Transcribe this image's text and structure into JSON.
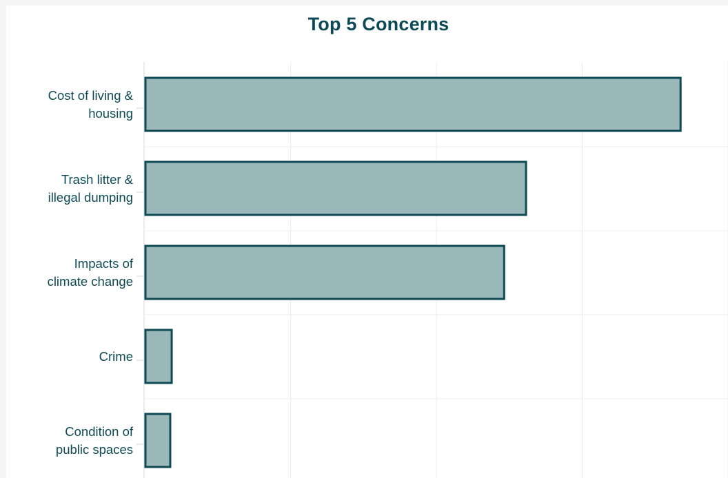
{
  "chart_data": {
    "type": "bar",
    "orientation": "horizontal",
    "title": "Top 5 Concerns",
    "xlabel": "",
    "ylabel": "",
    "categories": [
      [
        "Cost of living &",
        "housing"
      ],
      [
        "Trash litter &",
        "illegal dumping"
      ],
      [
        "Impacts of",
        "climate change"
      ],
      [
        "Crime"
      ],
      [
        "Condition of",
        "public spaces"
      ]
    ],
    "values": [
      36.7,
      26.1,
      24.6,
      1.8,
      1.7
    ],
    "xlim": [
      0,
      40
    ],
    "grid": true,
    "legend": "none",
    "colors": {
      "bar_fill": "#9ab8ba",
      "bar_stroke": "#0e4a55",
      "text": "#0e4a55",
      "grid": "#ececec",
      "axis": "#d6d6d6"
    }
  }
}
